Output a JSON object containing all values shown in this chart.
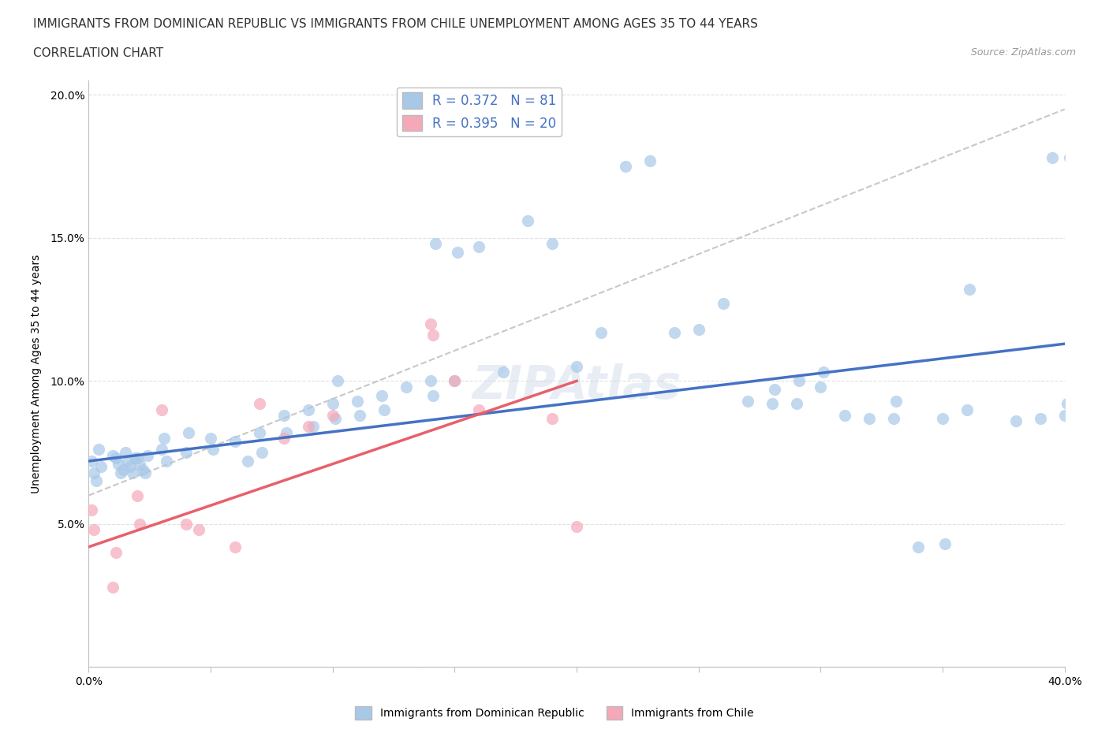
{
  "title_line1": "IMMIGRANTS FROM DOMINICAN REPUBLIC VS IMMIGRANTS FROM CHILE UNEMPLOYMENT AMONG AGES 35 TO 44 YEARS",
  "title_line2": "CORRELATION CHART",
  "source_text": "Source: ZipAtlas.com",
  "ylabel": "Unemployment Among Ages 35 to 44 years",
  "xlim": [
    0.0,
    0.4
  ],
  "ylim": [
    0.0,
    0.205
  ],
  "dr_R": 0.372,
  "dr_N": 81,
  "chile_R": 0.395,
  "chile_N": 20,
  "dr_color": "#a8c8e8",
  "chile_color": "#f4a8b8",
  "trend_dr_color": "#4472c4",
  "trend_chile_color": "#e8606a",
  "trend_dashed_color": "#c8c8c8",
  "legend_border_color": "#c0c0c0",
  "dr_scatter_x": [
    0.001,
    0.002,
    0.003,
    0.004,
    0.005,
    0.01,
    0.011,
    0.012,
    0.013,
    0.014,
    0.015,
    0.016,
    0.017,
    0.018,
    0.019,
    0.02,
    0.021,
    0.022,
    0.023,
    0.024,
    0.03,
    0.031,
    0.032,
    0.04,
    0.041,
    0.05,
    0.051,
    0.06,
    0.065,
    0.07,
    0.071,
    0.08,
    0.081,
    0.09,
    0.092,
    0.1,
    0.101,
    0.102,
    0.11,
    0.111,
    0.12,
    0.121,
    0.13,
    0.14,
    0.141,
    0.142,
    0.15,
    0.151,
    0.16,
    0.17,
    0.18,
    0.19,
    0.2,
    0.21,
    0.22,
    0.23,
    0.24,
    0.25,
    0.26,
    0.27,
    0.28,
    0.281,
    0.29,
    0.291,
    0.3,
    0.301,
    0.31,
    0.32,
    0.33,
    0.331,
    0.34,
    0.35,
    0.351,
    0.36,
    0.361,
    0.38,
    0.39,
    0.395,
    0.4,
    0.401,
    0.402
  ],
  "dr_scatter_y": [
    0.072,
    0.068,
    0.065,
    0.076,
    0.07,
    0.074,
    0.073,
    0.071,
    0.068,
    0.069,
    0.075,
    0.072,
    0.07,
    0.068,
    0.073,
    0.073,
    0.071,
    0.069,
    0.068,
    0.074,
    0.076,
    0.08,
    0.072,
    0.075,
    0.082,
    0.08,
    0.076,
    0.079,
    0.072,
    0.082,
    0.075,
    0.088,
    0.082,
    0.09,
    0.084,
    0.092,
    0.087,
    0.1,
    0.093,
    0.088,
    0.095,
    0.09,
    0.098,
    0.1,
    0.095,
    0.148,
    0.1,
    0.145,
    0.147,
    0.103,
    0.156,
    0.148,
    0.105,
    0.117,
    0.175,
    0.177,
    0.117,
    0.118,
    0.127,
    0.093,
    0.092,
    0.097,
    0.092,
    0.1,
    0.098,
    0.103,
    0.088,
    0.087,
    0.087,
    0.093,
    0.042,
    0.087,
    0.043,
    0.09,
    0.132,
    0.086,
    0.087,
    0.178,
    0.088,
    0.092,
    0.178
  ],
  "chile_scatter_x": [
    0.001,
    0.002,
    0.01,
    0.011,
    0.02,
    0.021,
    0.03,
    0.04,
    0.045,
    0.06,
    0.07,
    0.08,
    0.09,
    0.1,
    0.14,
    0.141,
    0.15,
    0.16,
    0.19,
    0.2
  ],
  "chile_scatter_y": [
    0.055,
    0.048,
    0.028,
    0.04,
    0.06,
    0.05,
    0.09,
    0.05,
    0.048,
    0.042,
    0.092,
    0.08,
    0.084,
    0.088,
    0.12,
    0.116,
    0.1,
    0.09,
    0.087,
    0.049
  ],
  "dr_trend_x0": 0.0,
  "dr_trend_y0": 0.072,
  "dr_trend_x1": 0.4,
  "dr_trend_y1": 0.113,
  "chile_trend_x0": 0.0,
  "chile_trend_y0": 0.042,
  "chile_trend_x1": 0.2,
  "chile_trend_y1": 0.1,
  "dashed_trend_x0": 0.0,
  "dashed_trend_y0": 0.06,
  "dashed_trend_x1": 0.4,
  "dashed_trend_y1": 0.195,
  "background_color": "#ffffff",
  "grid_color": "#e0e0e0",
  "title_fontsize": 11,
  "axis_label_fontsize": 10,
  "tick_fontsize": 10,
  "legend_fontsize": 12
}
